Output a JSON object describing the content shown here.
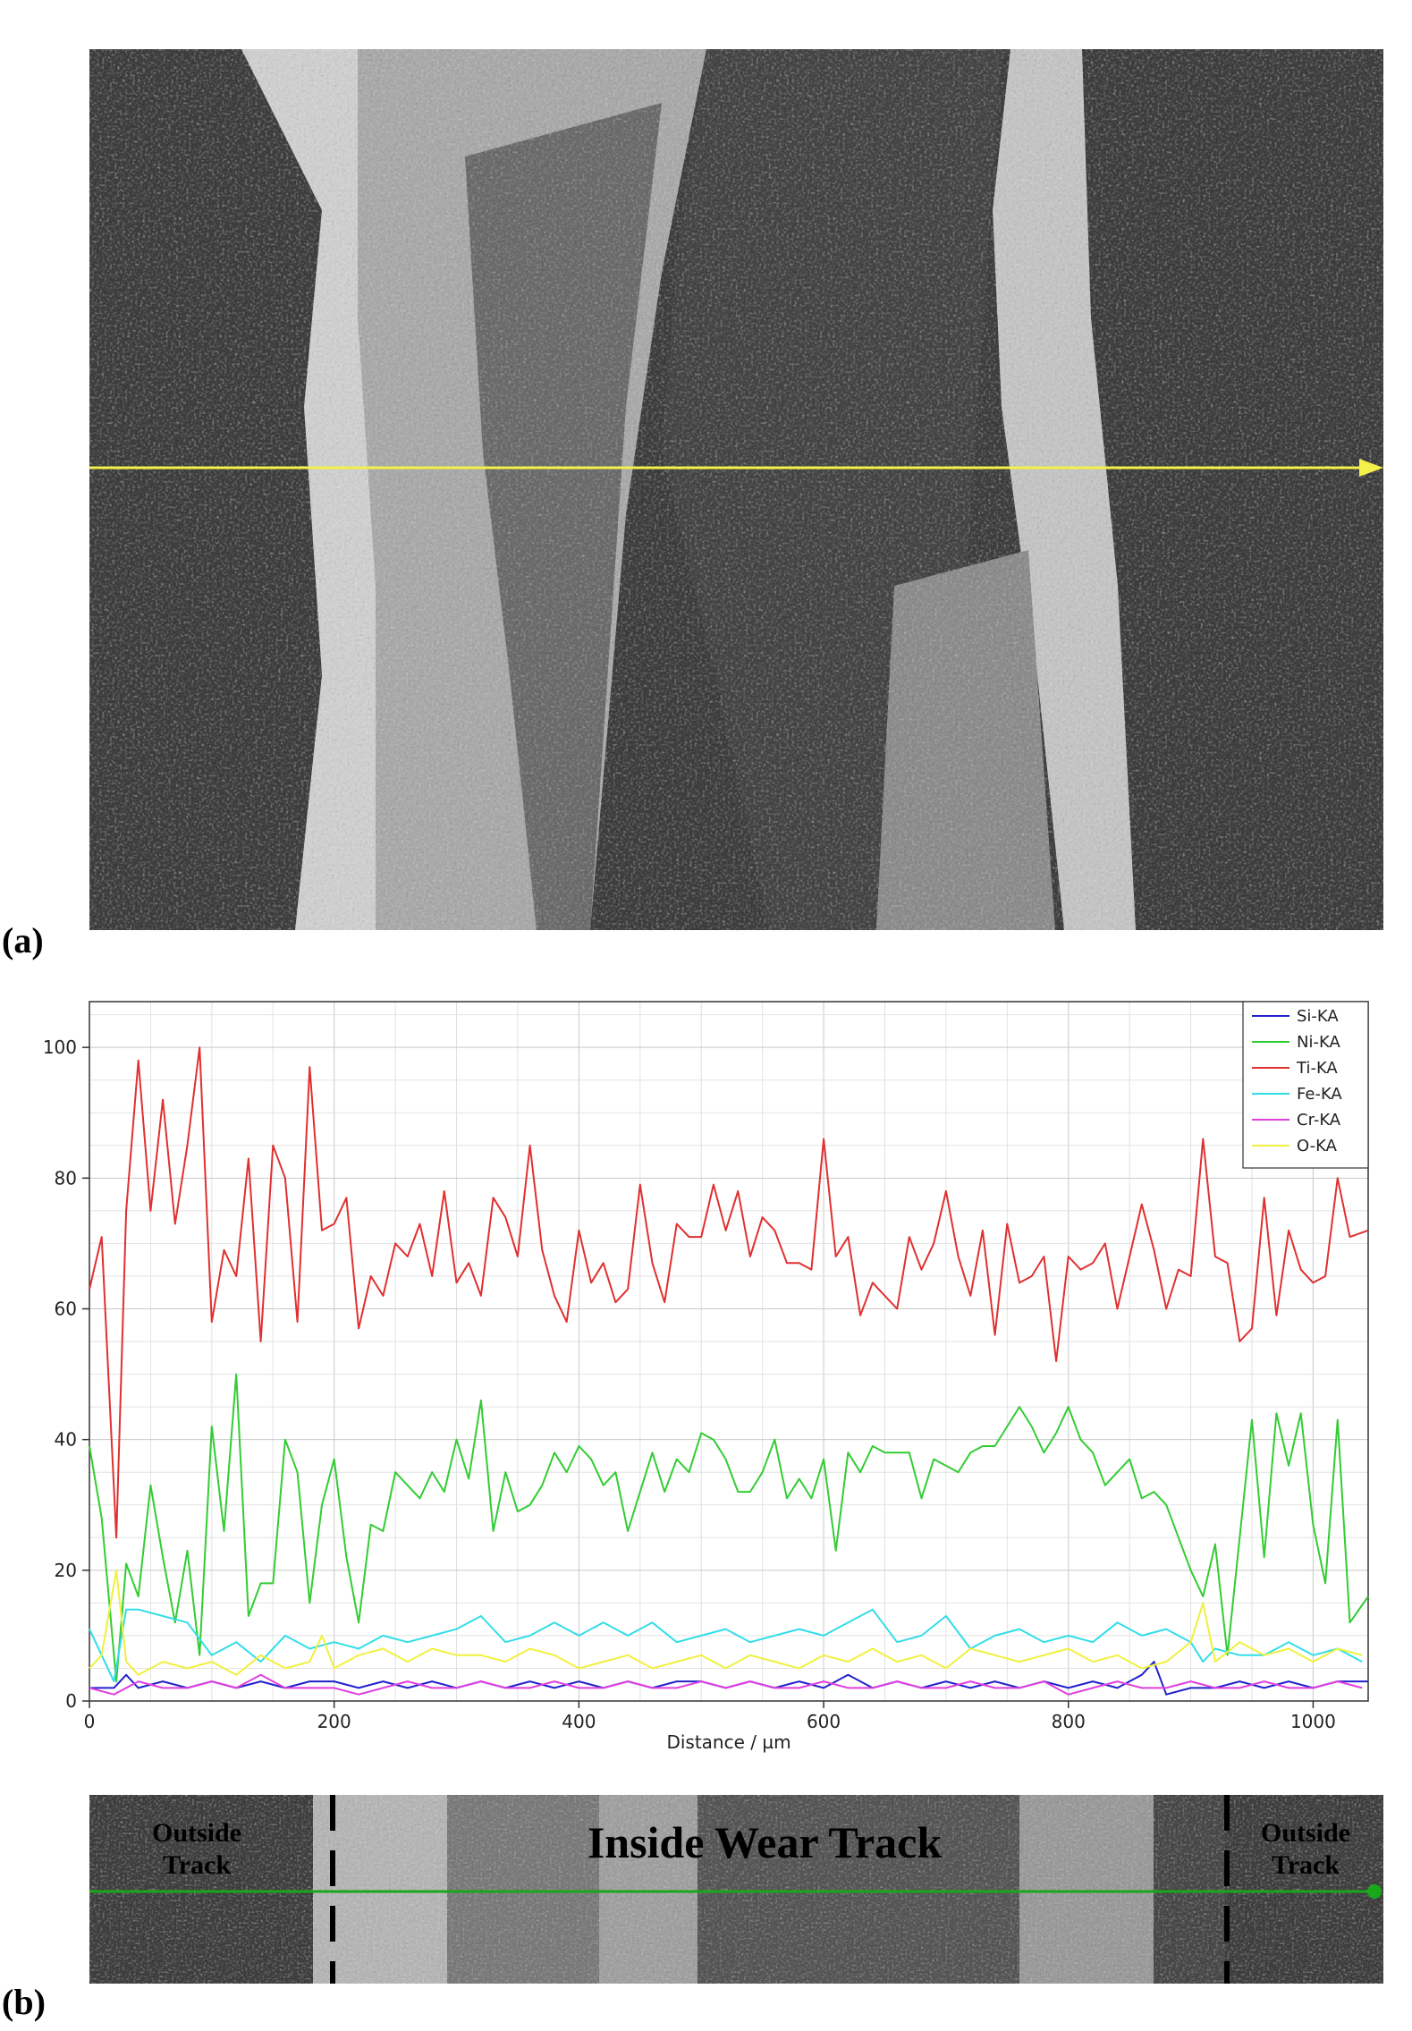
{
  "panels": {
    "a_label": "(a)",
    "b_label": "(b)"
  },
  "colors": {
    "scan_line_a": "#f4f04a",
    "scan_line_b": "#18a81a",
    "micrograph_dark": "#3a3a3a",
    "micrograph_light": "#c8c8c8"
  },
  "strip": {
    "left_label_line1": "Outside",
    "left_label_line2": "Track",
    "center_label": "Inside Wear Track",
    "right_label_line1": "Outside",
    "right_label_line2": "Track"
  },
  "chart_data": {
    "type": "line",
    "xlabel": "Distance / µm",
    "ylabel": "",
    "xlim": [
      0,
      1045
    ],
    "ylim": [
      0,
      107
    ],
    "xticks": [
      0,
      200,
      400,
      600,
      800,
      1000
    ],
    "yticks": [
      0,
      20,
      40,
      60,
      80,
      100
    ],
    "grid": true,
    "legend_position": "top-right",
    "series": [
      {
        "name": "Si-KA",
        "color": "#2222cc",
        "x": [
          0,
          20,
          30,
          40,
          60,
          80,
          100,
          120,
          140,
          160,
          180,
          200,
          220,
          240,
          260,
          280,
          300,
          320,
          340,
          360,
          380,
          400,
          420,
          440,
          460,
          480,
          500,
          520,
          540,
          560,
          580,
          600,
          620,
          640,
          660,
          680,
          700,
          720,
          740,
          760,
          780,
          800,
          820,
          840,
          860,
          870,
          880,
          900,
          920,
          940,
          960,
          980,
          1000,
          1020,
          1045
        ],
        "y": [
          2,
          2,
          4,
          2,
          3,
          2,
          3,
          2,
          3,
          2,
          3,
          3,
          2,
          3,
          2,
          3,
          2,
          3,
          2,
          3,
          2,
          3,
          2,
          3,
          2,
          3,
          3,
          2,
          3,
          2,
          3,
          2,
          4,
          2,
          3,
          2,
          3,
          2,
          3,
          2,
          3,
          2,
          3,
          2,
          4,
          6,
          1,
          2,
          2,
          3,
          2,
          3,
          2,
          3,
          3
        ]
      },
      {
        "name": "Ni-KA",
        "color": "#33cc33",
        "x": [
          0,
          10,
          22,
          30,
          40,
          50,
          60,
          70,
          80,
          90,
          100,
          110,
          120,
          130,
          140,
          150,
          160,
          170,
          180,
          190,
          200,
          210,
          220,
          230,
          240,
          250,
          260,
          270,
          280,
          290,
          300,
          310,
          320,
          330,
          340,
          350,
          360,
          370,
          380,
          390,
          400,
          410,
          420,
          430,
          440,
          450,
          460,
          470,
          480,
          490,
          500,
          510,
          520,
          530,
          540,
          550,
          560,
          570,
          580,
          590,
          600,
          610,
          620,
          630,
          640,
          650,
          660,
          670,
          680,
          690,
          700,
          710,
          720,
          730,
          740,
          750,
          760,
          770,
          780,
          790,
          800,
          810,
          820,
          830,
          840,
          850,
          860,
          870,
          880,
          890,
          900,
          910,
          920,
          930,
          940,
          950,
          960,
          970,
          980,
          990,
          1000,
          1010,
          1020,
          1030,
          1045
        ],
        "y": [
          39,
          28,
          3,
          21,
          16,
          33,
          22,
          12,
          23,
          7,
          42,
          26,
          50,
          13,
          18,
          18,
          40,
          35,
          15,
          30,
          37,
          22,
          12,
          27,
          26,
          35,
          33,
          31,
          35,
          32,
          40,
          34,
          46,
          26,
          35,
          29,
          30,
          33,
          38,
          35,
          39,
          37,
          33,
          35,
          26,
          32,
          38,
          32,
          37,
          35,
          41,
          40,
          37,
          32,
          32,
          35,
          40,
          31,
          34,
          31,
          37,
          23,
          38,
          35,
          39,
          38,
          38,
          38,
          31,
          37,
          36,
          35,
          38,
          39,
          39,
          42,
          45,
          42,
          38,
          41,
          45,
          40,
          38,
          33,
          35,
          37,
          31,
          32,
          30,
          25,
          20,
          16,
          24,
          7,
          25,
          43,
          22,
          44,
          36,
          44,
          27,
          18,
          43,
          12,
          16
        ]
      },
      {
        "name": "Ti-KA",
        "color": "#e03030",
        "x": [
          0,
          10,
          22,
          30,
          40,
          50,
          60,
          70,
          80,
          90,
          100,
          110,
          120,
          130,
          140,
          150,
          160,
          170,
          180,
          190,
          200,
          210,
          220,
          230,
          240,
          250,
          260,
          270,
          280,
          290,
          300,
          310,
          320,
          330,
          340,
          350,
          360,
          370,
          380,
          390,
          400,
          410,
          420,
          430,
          440,
          450,
          460,
          470,
          480,
          490,
          500,
          510,
          520,
          530,
          540,
          550,
          560,
          570,
          580,
          590,
          600,
          610,
          620,
          630,
          640,
          650,
          660,
          670,
          680,
          690,
          700,
          710,
          720,
          730,
          740,
          750,
          760,
          770,
          780,
          790,
          800,
          810,
          820,
          830,
          840,
          850,
          860,
          870,
          880,
          890,
          900,
          910,
          920,
          930,
          940,
          950,
          960,
          970,
          980,
          990,
          1000,
          1010,
          1020,
          1030,
          1045
        ],
        "y": [
          63,
          71,
          25,
          75,
          98,
          75,
          92,
          73,
          85,
          100,
          58,
          69,
          65,
          83,
          55,
          85,
          80,
          58,
          97,
          72,
          73,
          77,
          57,
          65,
          62,
          70,
          68,
          73,
          65,
          78,
          64,
          67,
          62,
          77,
          74,
          68,
          85,
          69,
          62,
          58,
          72,
          64,
          67,
          61,
          63,
          79,
          67,
          61,
          73,
          71,
          71,
          79,
          72,
          78,
          68,
          74,
          72,
          67,
          67,
          66,
          86,
          68,
          71,
          59,
          64,
          62,
          60,
          71,
          66,
          70,
          78,
          68,
          62,
          72,
          56,
          73,
          64,
          65,
          68,
          52,
          68,
          66,
          67,
          70,
          60,
          68,
          76,
          69,
          60,
          66,
          65,
          86,
          68,
          67,
          55,
          57,
          77,
          59,
          72,
          66,
          64,
          65,
          80,
          71,
          72
        ]
      },
      {
        "name": "Fe-KA",
        "color": "#33dde8",
        "x": [
          0,
          20,
          30,
          40,
          60,
          80,
          100,
          120,
          140,
          160,
          180,
          200,
          220,
          240,
          260,
          280,
          300,
          320,
          340,
          360,
          380,
          400,
          420,
          440,
          460,
          480,
          500,
          520,
          540,
          560,
          580,
          600,
          620,
          640,
          660,
          680,
          700,
          720,
          740,
          760,
          780,
          800,
          820,
          840,
          860,
          880,
          900,
          910,
          920,
          940,
          960,
          980,
          1000,
          1020,
          1040
        ],
        "y": [
          11,
          3,
          14,
          14,
          13,
          12,
          7,
          9,
          6,
          10,
          8,
          9,
          8,
          10,
          9,
          10,
          11,
          13,
          9,
          10,
          12,
          10,
          12,
          10,
          12,
          9,
          10,
          11,
          9,
          10,
          11,
          10,
          12,
          14,
          9,
          10,
          13,
          8,
          10,
          11,
          9,
          10,
          9,
          12,
          10,
          11,
          9,
          6,
          8,
          7,
          7,
          9,
          7,
          8,
          6
        ]
      },
      {
        "name": "Cr-KA",
        "color": "#e040e0",
        "x": [
          0,
          20,
          40,
          60,
          80,
          100,
          120,
          140,
          160,
          180,
          200,
          220,
          240,
          260,
          280,
          300,
          320,
          340,
          360,
          380,
          400,
          420,
          440,
          460,
          480,
          500,
          520,
          540,
          560,
          580,
          600,
          620,
          640,
          660,
          680,
          700,
          720,
          740,
          760,
          780,
          800,
          820,
          840,
          860,
          880,
          900,
          920,
          940,
          960,
          980,
          1000,
          1020,
          1040
        ],
        "y": [
          2,
          1,
          3,
          2,
          2,
          3,
          2,
          4,
          2,
          2,
          2,
          1,
          2,
          3,
          2,
          2,
          3,
          2,
          2,
          3,
          2,
          2,
          3,
          2,
          2,
          3,
          2,
          3,
          2,
          2,
          3,
          2,
          2,
          3,
          2,
          2,
          3,
          2,
          2,
          3,
          1,
          2,
          3,
          2,
          2,
          3,
          2,
          2,
          3,
          2,
          2,
          3,
          2
        ]
      },
      {
        "name": "O-KA",
        "color": "#f0f040",
        "x": [
          0,
          10,
          22,
          30,
          40,
          60,
          80,
          100,
          120,
          140,
          160,
          180,
          190,
          200,
          220,
          240,
          260,
          280,
          300,
          320,
          340,
          360,
          380,
          400,
          420,
          440,
          460,
          480,
          500,
          520,
          540,
          560,
          580,
          600,
          620,
          640,
          660,
          680,
          700,
          720,
          740,
          760,
          780,
          800,
          820,
          840,
          860,
          880,
          900,
          910,
          920,
          940,
          960,
          980,
          1000,
          1020,
          1040
        ],
        "y": [
          5,
          7,
          20,
          6,
          4,
          6,
          5,
          6,
          4,
          7,
          5,
          6,
          10,
          5,
          7,
          8,
          6,
          8,
          7,
          7,
          6,
          8,
          7,
          5,
          6,
          7,
          5,
          6,
          7,
          5,
          7,
          6,
          5,
          7,
          6,
          8,
          6,
          7,
          5,
          8,
          7,
          6,
          7,
          8,
          6,
          7,
          5,
          6,
          9,
          15,
          6,
          9,
          7,
          8,
          6,
          8,
          7
        ]
      }
    ]
  }
}
